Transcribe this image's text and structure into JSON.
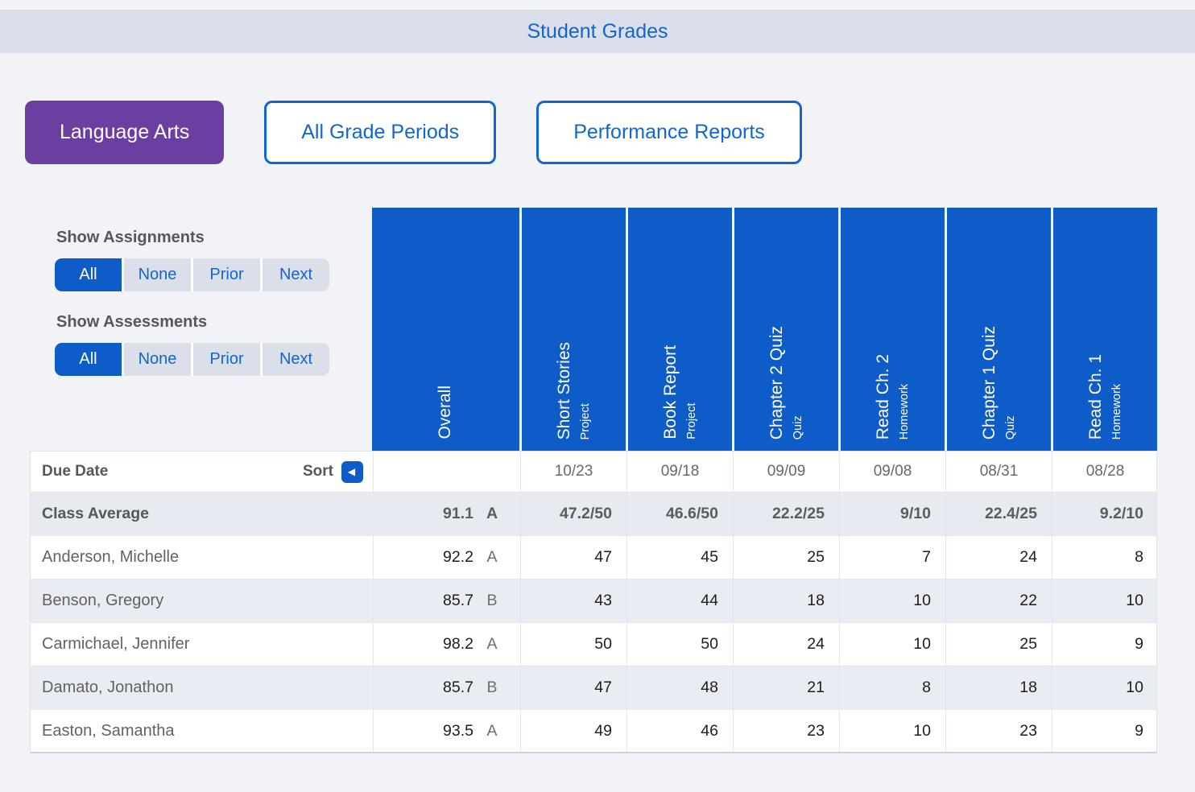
{
  "header": {
    "title": "Student Grades"
  },
  "toolbar": {
    "subject": "Language Arts",
    "grade_periods": "All Grade Periods",
    "reports": "Performance Reports"
  },
  "filters": {
    "assignments": {
      "label": "Show Assignments",
      "options": [
        "All",
        "None",
        "Prior",
        "Next"
      ],
      "active": "All"
    },
    "assessments": {
      "label": "Show Assessments",
      "options": [
        "All",
        "None",
        "Prior",
        "Next"
      ],
      "active": "All"
    }
  },
  "grades": {
    "due_date_label": "Due Date",
    "sort_label": "Sort",
    "sort_icon_glyph": "◀",
    "class_average_label": "Class Average",
    "columns": [
      {
        "title": "Overall",
        "subtitle": "",
        "due_date": "",
        "class_average": "91.1",
        "class_average_letter": "A"
      },
      {
        "title": "Short Stories",
        "subtitle": "Project",
        "due_date": "10/23",
        "class_average": "47.2/50"
      },
      {
        "title": "Book Report",
        "subtitle": "Project",
        "due_date": "09/18",
        "class_average": "46.6/50"
      },
      {
        "title": "Chapter 2 Quiz",
        "subtitle": "Quiz",
        "due_date": "09/09",
        "class_average": "22.2/25"
      },
      {
        "title": "Read Ch. 2",
        "subtitle": "Homework",
        "due_date": "09/08",
        "class_average": "9/10"
      },
      {
        "title": "Chapter 1 Quiz",
        "subtitle": "Quiz",
        "due_date": "08/31",
        "class_average": "22.4/25"
      },
      {
        "title": "Read Ch. 1",
        "subtitle": "Homework",
        "due_date": "08/28",
        "class_average": "9.2/10"
      }
    ],
    "students": [
      {
        "name": "Anderson, Michelle",
        "overall": "92.2",
        "letter": "A",
        "scores": [
          "47",
          "45",
          "25",
          "7",
          "24",
          "8"
        ]
      },
      {
        "name": "Benson, Gregory",
        "overall": "85.7",
        "letter": "B",
        "scores": [
          "43",
          "44",
          "18",
          "10",
          "22",
          "10"
        ]
      },
      {
        "name": "Carmichael, Jennifer",
        "overall": "98.2",
        "letter": "A",
        "scores": [
          "50",
          "50",
          "24",
          "10",
          "25",
          "9"
        ]
      },
      {
        "name": "Damato, Jonathon",
        "overall": "85.7",
        "letter": "B",
        "scores": [
          "47",
          "48",
          "21",
          "8",
          "18",
          "10"
        ]
      },
      {
        "name": "Easton, Samantha",
        "overall": "93.5",
        "letter": "A",
        "scores": [
          "49",
          "46",
          "23",
          "10",
          "23",
          "9"
        ]
      }
    ]
  },
  "colors": {
    "accent_blue": "#1266d2",
    "fill_blue": "#0e5cc8",
    "purple": "#6a3fa1",
    "band_bg": "#dbdfe9",
    "page_bg": "#f2f3f6",
    "stripe_bg": "#eaecf3",
    "average_row_bg": "#e7eaf1"
  }
}
